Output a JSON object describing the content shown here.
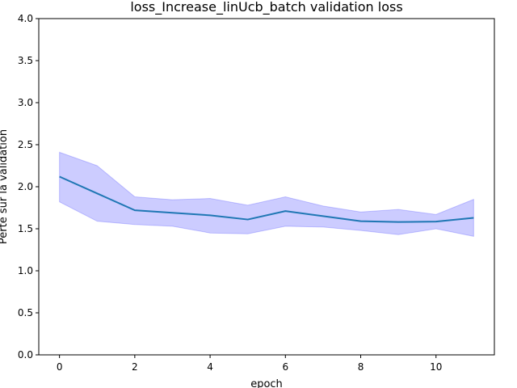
{
  "chart_data": {
    "type": "line",
    "title": "loss_Increase_linUcb_batch validation loss",
    "xlabel": "epoch",
    "ylabel": "Perte sur la validation",
    "xlim": [
      -0.55,
      11.55
    ],
    "ylim": [
      0.0,
      4.0
    ],
    "x_ticks": [
      0,
      2,
      4,
      6,
      8,
      10
    ],
    "y_ticks": [
      0.0,
      0.5,
      1.0,
      1.5,
      2.0,
      2.5,
      3.0,
      3.5,
      4.0
    ],
    "x_tick_labels": [
      "0",
      "2",
      "4",
      "6",
      "8",
      "10"
    ],
    "y_tick_labels": [
      "0.0",
      "0.5",
      "1.0",
      "1.5",
      "2.0",
      "2.5",
      "3.0",
      "3.5",
      "4.0"
    ],
    "grid": false,
    "series": [
      {
        "x": [
          0,
          1,
          2,
          3,
          4,
          5,
          6,
          7,
          8,
          9,
          10,
          11
        ],
        "mean": [
          2.12,
          1.92,
          1.72,
          1.69,
          1.66,
          1.61,
          1.71,
          1.65,
          1.59,
          1.58,
          1.585,
          1.63
        ],
        "lower": [
          1.82,
          1.59,
          1.55,
          1.53,
          1.45,
          1.44,
          1.53,
          1.52,
          1.48,
          1.43,
          1.5,
          1.41
        ],
        "upper": [
          2.41,
          2.25,
          1.88,
          1.845,
          1.86,
          1.78,
          1.88,
          1.77,
          1.7,
          1.73,
          1.67,
          1.85
        ],
        "line_color": "#1f77b4",
        "band_color": "#0000ff"
      }
    ]
  }
}
